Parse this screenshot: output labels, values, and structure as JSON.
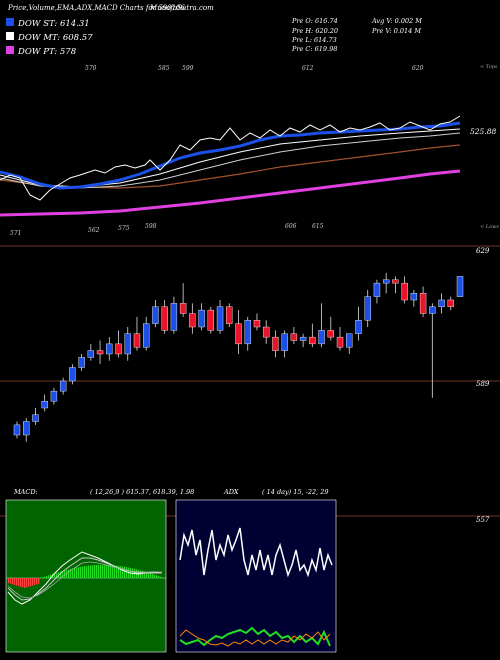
{
  "header": {
    "title": "Price,Volume,EMA,ADX,MACD Charts for 590106",
    "site": "MunafaSutra.com"
  },
  "legend": [
    {
      "label": "DOW ST: 614.31",
      "color": "#1c50e8"
    },
    {
      "label": "DOW MT: 608.57",
      "color": "#ffffff"
    },
    {
      "label": "DOW PT: 578",
      "color": "#e040e0"
    }
  ],
  "stats": {
    "row1": [
      "Pre   O: 616.74",
      "Avg V: 0.002  M"
    ],
    "row2": [
      "Pre   H: 620.20",
      "Pre   V: 0.014  M"
    ],
    "row3": [
      "Pre   L: 614.73"
    ],
    "row4": [
      "Pre   C: 619.98"
    ]
  },
  "ema_panel": {
    "top_labels": [
      "570",
      "585",
      "599",
      "612",
      "620"
    ],
    "bottom_labels": [
      "571",
      "562",
      "575",
      "598",
      "606",
      "615"
    ],
    "tops_label": "< Tops",
    "lows_label": "< Lows",
    "price_label": "525.88"
  },
  "price_panel": {
    "levels": [
      "629",
      "589",
      "557"
    ]
  },
  "bottom_panels": {
    "macd_label": "MACD:",
    "macd_values": "( 12,26,9 ) 615.37,  618.39,  1.98",
    "adx_label": "ADX",
    "adx_values": "( 14  day) 15,  -22,  29"
  },
  "colors": {
    "up": "#1c50e8",
    "down": "#e8142a",
    "level_line": "#8a4a2a",
    "macd_bg": "#006400",
    "adx_bg": "#000033",
    "macd_hist_up": "#22dd22",
    "macd_hist_down": "#ff4444",
    "adx_plus": "#22dd22",
    "adx_minus": "#ff8800"
  },
  "chart_data": {
    "type": "candlestick",
    "y_axis_levels": [
      629,
      589,
      557
    ],
    "candles": [
      {
        "o": 573,
        "h": 577,
        "l": 572,
        "c": 576
      },
      {
        "o": 573,
        "h": 578,
        "l": 571,
        "c": 577
      },
      {
        "o": 577,
        "h": 581,
        "l": 576,
        "c": 579
      },
      {
        "o": 581,
        "h": 585,
        "l": 580,
        "c": 583
      },
      {
        "o": 583,
        "h": 587,
        "l": 582,
        "c": 586
      },
      {
        "o": 586,
        "h": 590,
        "l": 585,
        "c": 589
      },
      {
        "o": 589,
        "h": 594,
        "l": 588,
        "c": 593
      },
      {
        "o": 593,
        "h": 597,
        "l": 592,
        "c": 596
      },
      {
        "o": 596,
        "h": 600,
        "l": 595,
        "c": 598
      },
      {
        "o": 598,
        "h": 601,
        "l": 594,
        "c": 597
      },
      {
        "o": 597,
        "h": 602,
        "l": 595,
        "c": 600
      },
      {
        "o": 600,
        "h": 604,
        "l": 596,
        "c": 597
      },
      {
        "o": 597,
        "h": 605,
        "l": 595,
        "c": 603
      },
      {
        "o": 603,
        "h": 608,
        "l": 598,
        "c": 599
      },
      {
        "o": 599,
        "h": 608,
        "l": 598,
        "c": 606
      },
      {
        "o": 606,
        "h": 613,
        "l": 605,
        "c": 611
      },
      {
        "o": 611,
        "h": 613,
        "l": 603,
        "c": 604
      },
      {
        "o": 604,
        "h": 614,
        "l": 603,
        "c": 612
      },
      {
        "o": 612,
        "h": 618,
        "l": 608,
        "c": 609
      },
      {
        "o": 609,
        "h": 612,
        "l": 603,
        "c": 605
      },
      {
        "o": 605,
        "h": 612,
        "l": 604,
        "c": 610
      },
      {
        "o": 610,
        "h": 611,
        "l": 603,
        "c": 604
      },
      {
        "o": 604,
        "h": 613,
        "l": 603,
        "c": 611
      },
      {
        "o": 611,
        "h": 612,
        "l": 605,
        "c": 606
      },
      {
        "o": 606,
        "h": 610,
        "l": 597,
        "c": 600
      },
      {
        "o": 600,
        "h": 608,
        "l": 598,
        "c": 607
      },
      {
        "o": 607,
        "h": 609,
        "l": 604,
        "c": 605
      },
      {
        "o": 605,
        "h": 607,
        "l": 600,
        "c": 602
      },
      {
        "o": 602,
        "h": 604,
        "l": 596,
        "c": 598
      },
      {
        "o": 598,
        "h": 604,
        "l": 596,
        "c": 603
      },
      {
        "o": 603,
        "h": 605,
        "l": 600,
        "c": 601
      },
      {
        "o": 601,
        "h": 603,
        "l": 599,
        "c": 602
      },
      {
        "o": 602,
        "h": 606,
        "l": 599,
        "c": 600
      },
      {
        "o": 600,
        "h": 612,
        "l": 599,
        "c": 604
      },
      {
        "o": 604,
        "h": 608,
        "l": 601,
        "c": 602
      },
      {
        "o": 602,
        "h": 605,
        "l": 598,
        "c": 599
      },
      {
        "o": 599,
        "h": 603,
        "l": 597,
        "c": 603
      },
      {
        "o": 603,
        "h": 611,
        "l": 601,
        "c": 607
      },
      {
        "o": 607,
        "h": 616,
        "l": 605,
        "c": 614
      },
      {
        "o": 614,
        "h": 619,
        "l": 612,
        "c": 618
      },
      {
        "o": 618,
        "h": 621,
        "l": 615,
        "c": 619
      },
      {
        "o": 619,
        "h": 620,
        "l": 615,
        "c": 618
      },
      {
        "o": 618,
        "h": 620,
        "l": 612,
        "c": 613
      },
      {
        "o": 613,
        "h": 616,
        "l": 611,
        "c": 615
      },
      {
        "o": 615,
        "h": 617,
        "l": 608,
        "c": 609
      },
      {
        "o": 609,
        "h": 612,
        "l": 584,
        "c": 611
      },
      {
        "o": 611,
        "h": 615,
        "l": 609,
        "c": 613
      },
      {
        "o": 613,
        "h": 614,
        "l": 610,
        "c": 611
      },
      {
        "o": 614,
        "h": 620,
        "l": 614,
        "c": 620
      }
    ]
  }
}
